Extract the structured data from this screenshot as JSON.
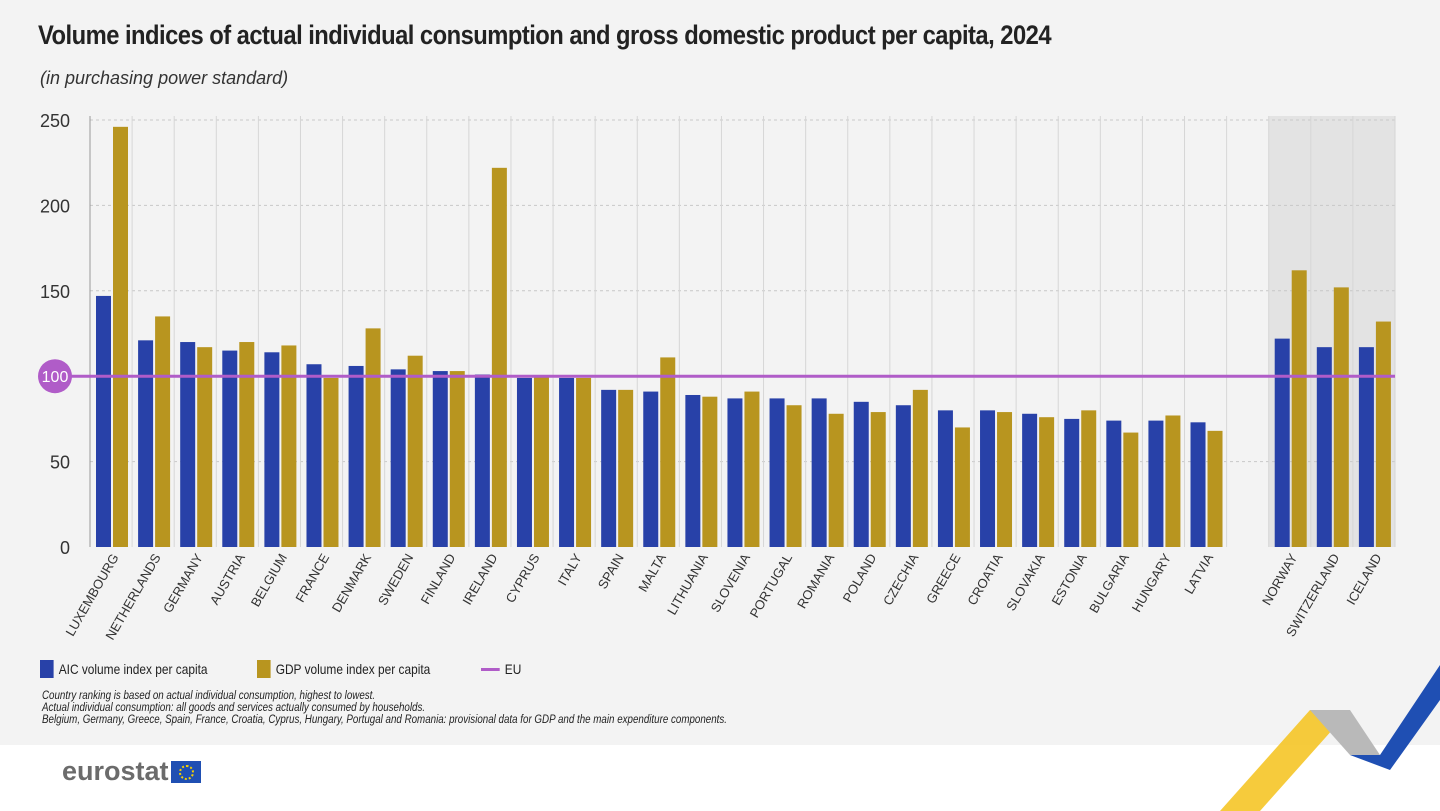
{
  "title": "Volume indices of actual individual consumption and gross domestic product per capita, 2024",
  "subtitle": "(in purchasing power standard)",
  "legend": {
    "aic": "AIC volume index per capita",
    "gdp": "GDP volume index per capita",
    "eu": "EU"
  },
  "notes": [
    "Country ranking is based on actual individual consumption, highest to lowest.",
    "Actual individual consumption: all goods and services actually consumed by households.",
    "Belgium, Germany, Greece, Spain, France, Croatia, Cyprus, Hungary, Portugal and Romania: provisional data for GDP and the main expenditure components."
  ],
  "logo": "eurostat",
  "colors": {
    "aic": "#2841a8",
    "gdp": "#b8951f",
    "eu": "#b05cc8",
    "non_eu_band": "#e3e3e3"
  },
  "chart_data": {
    "type": "bar",
    "title": "Volume indices of actual individual consumption and gross domestic product per capita, 2024",
    "subtitle": "(in purchasing power standard)",
    "categories": [
      "LUXEMBOURG",
      "NETHERLANDS",
      "GERMANY",
      "AUSTRIA",
      "BELGIUM",
      "FRANCE",
      "DENMARK",
      "SWEDEN",
      "FINLAND",
      "IRELAND",
      "CYPRUS",
      "ITALY",
      "SPAIN",
      "MALTA",
      "LITHUANIA",
      "SLOVENIA",
      "PORTUGAL",
      "ROMANIA",
      "POLAND",
      "CZECHIA",
      "GREECE",
      "CROATIA",
      "SLOVAKIA",
      "ESTONIA",
      "BULGARIA",
      "HUNGARY",
      "LATVIA",
      "",
      "NORWAY",
      "SWITZERLAND",
      "ICELAND"
    ],
    "series": [
      {
        "name": "AIC volume index per capita",
        "values": [
          147,
          121,
          120,
          115,
          114,
          107,
          106,
          104,
          103,
          101,
          99,
          99,
          92,
          91,
          89,
          87,
          87,
          87,
          85,
          83,
          80,
          80,
          78,
          75,
          74,
          74,
          73,
          null,
          122,
          117,
          117
        ]
      },
      {
        "name": "GDP volume index per capita",
        "values": [
          246,
          135,
          117,
          120,
          118,
          99,
          128,
          112,
          103,
          222,
          100,
          99,
          92,
          111,
          88,
          91,
          83,
          78,
          79,
          92,
          70,
          79,
          76,
          80,
          67,
          77,
          68,
          null,
          162,
          152,
          132
        ]
      }
    ],
    "reference_line": {
      "name": "EU",
      "value": 100
    },
    "ylim": [
      0,
      250
    ],
    "yticks": [
      0,
      50,
      100,
      150,
      200,
      250
    ],
    "grid": true,
    "legend_position": "bottom-left",
    "highlighted_group": [
      "NORWAY",
      "SWITZERLAND",
      "ICELAND"
    ]
  }
}
